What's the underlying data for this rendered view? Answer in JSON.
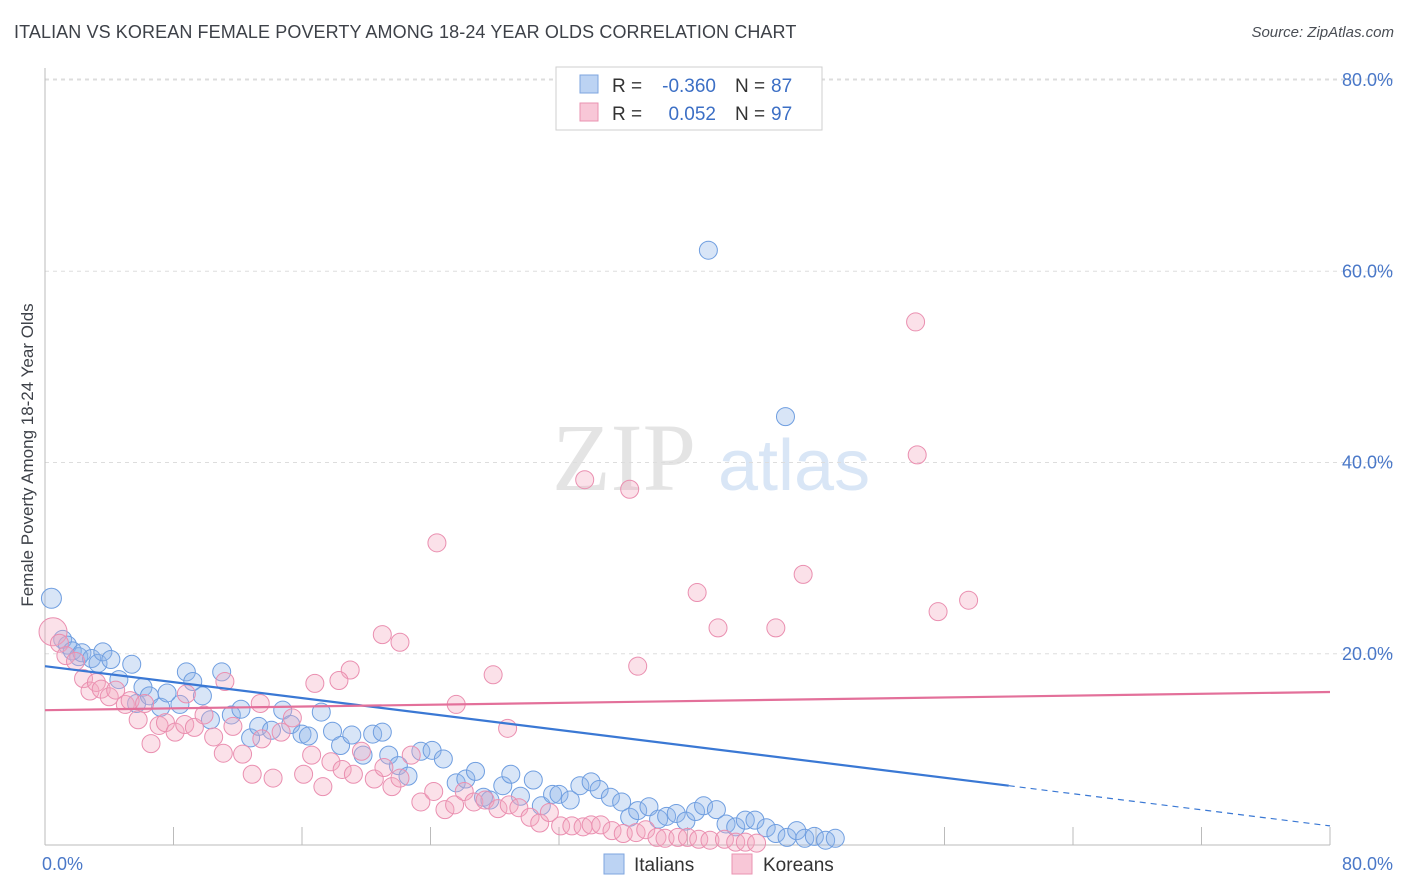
{
  "title": "ITALIAN VS KOREAN FEMALE POVERTY AMONG 18-24 YEAR OLDS CORRELATION CHART",
  "source": "Source: ZipAtlas.com",
  "watermark": {
    "zip": "ZIP",
    "atlas": "atlas"
  },
  "chart_data": {
    "type": "scatter",
    "ylabel": "Female Poverty Among 18-24 Year Olds",
    "xlim": [
      0,
      80
    ],
    "ylim": [
      0,
      80
    ],
    "x_tick_labels": [
      "0.0%",
      "80.0%"
    ],
    "y_ticks": [
      20,
      40,
      60,
      80
    ],
    "y_tick_labels": [
      "20.0%",
      "40.0%",
      "60.0%",
      "80.0%"
    ],
    "grid": true,
    "legend_position": "bottom-center",
    "stats": [
      {
        "r_label": "R =",
        "r_value": "-0.360",
        "n_label": "N =",
        "n_value": "87"
      },
      {
        "r_label": "R =",
        "r_value": "0.052",
        "n_label": "N =",
        "n_value": "97"
      }
    ],
    "series": [
      {
        "name": "Italians",
        "color": "#8fb4e8",
        "line_color": "#3a78d4",
        "trend": {
          "x0": 0,
          "y0": 18.7,
          "x1": 60,
          "y1": 6.2,
          "dash_to_x": 80,
          "dash_to_y": 2.0
        },
        "points": [
          [
            0.4,
            25.8
          ],
          [
            1.1,
            21.5
          ],
          [
            1.4,
            20.9
          ],
          [
            1.7,
            20.3
          ],
          [
            2.1,
            19.7
          ],
          [
            2.3,
            20.1
          ],
          [
            2.9,
            19.5
          ],
          [
            3.3,
            19.0
          ],
          [
            3.6,
            20.2
          ],
          [
            4.1,
            19.4
          ],
          [
            4.6,
            17.3
          ],
          [
            5.4,
            18.9
          ],
          [
            5.7,
            14.8
          ],
          [
            6.1,
            16.5
          ],
          [
            6.5,
            15.6
          ],
          [
            7.2,
            14.4
          ],
          [
            7.6,
            15.9
          ],
          [
            8.4,
            14.7
          ],
          [
            8.8,
            18.1
          ],
          [
            9.2,
            17.1
          ],
          [
            9.8,
            15.6
          ],
          [
            10.3,
            13.1
          ],
          [
            11.0,
            18.1
          ],
          [
            11.6,
            13.6
          ],
          [
            12.2,
            14.2
          ],
          [
            12.8,
            11.2
          ],
          [
            13.3,
            12.4
          ],
          [
            14.1,
            12.0
          ],
          [
            14.8,
            14.1
          ],
          [
            15.3,
            12.6
          ],
          [
            16.0,
            11.6
          ],
          [
            16.4,
            11.4
          ],
          [
            17.2,
            13.9
          ],
          [
            17.9,
            11.9
          ],
          [
            18.4,
            10.4
          ],
          [
            19.1,
            11.5
          ],
          [
            19.8,
            9.4
          ],
          [
            20.4,
            11.6
          ],
          [
            21.0,
            11.8
          ],
          [
            21.4,
            9.4
          ],
          [
            22.0,
            8.3
          ],
          [
            22.6,
            7.2
          ],
          [
            23.4,
            9.8
          ],
          [
            24.1,
            9.9
          ],
          [
            24.8,
            9.0
          ],
          [
            25.6,
            6.5
          ],
          [
            26.2,
            6.9
          ],
          [
            26.8,
            7.7
          ],
          [
            27.3,
            5.0
          ],
          [
            27.7,
            4.7
          ],
          [
            28.5,
            6.2
          ],
          [
            29.0,
            7.4
          ],
          [
            29.6,
            5.1
          ],
          [
            30.4,
            6.8
          ],
          [
            30.9,
            4.1
          ],
          [
            31.6,
            5.3
          ],
          [
            32.0,
            5.3
          ],
          [
            32.7,
            4.7
          ],
          [
            33.3,
            6.2
          ],
          [
            34.0,
            6.6
          ],
          [
            34.5,
            5.8
          ],
          [
            35.2,
            5.0
          ],
          [
            35.9,
            4.5
          ],
          [
            36.4,
            2.9
          ],
          [
            36.9,
            3.6
          ],
          [
            37.6,
            4.0
          ],
          [
            38.2,
            2.7
          ],
          [
            38.7,
            3.0
          ],
          [
            39.3,
            3.3
          ],
          [
            39.9,
            2.5
          ],
          [
            40.5,
            3.5
          ],
          [
            41.0,
            4.1
          ],
          [
            41.8,
            3.7
          ],
          [
            42.4,
            2.2
          ],
          [
            43.0,
            1.9
          ],
          [
            43.6,
            2.6
          ],
          [
            44.2,
            2.6
          ],
          [
            44.9,
            1.8
          ],
          [
            45.5,
            1.2
          ],
          [
            46.2,
            0.8
          ],
          [
            46.8,
            1.5
          ],
          [
            47.3,
            0.7
          ],
          [
            47.9,
            0.9
          ],
          [
            48.6,
            0.5
          ],
          [
            49.2,
            0.7
          ],
          [
            41.3,
            62.2
          ],
          [
            46.1,
            44.8
          ]
        ]
      },
      {
        "name": "Koreans",
        "color": "#f4a9c1",
        "line_color": "#e3709a",
        "trend": {
          "x0": 0,
          "y0": 14.1,
          "x1": 80,
          "y1": 16.0
        },
        "points": [
          [
            0.5,
            22.3
          ],
          [
            0.9,
            21.1
          ],
          [
            1.3,
            19.8
          ],
          [
            1.9,
            19.2
          ],
          [
            2.4,
            17.4
          ],
          [
            2.8,
            16.1
          ],
          [
            3.2,
            17.0
          ],
          [
            3.5,
            16.3
          ],
          [
            4.0,
            15.5
          ],
          [
            4.4,
            16.2
          ],
          [
            5.0,
            14.7
          ],
          [
            5.3,
            15.1
          ],
          [
            5.8,
            13.1
          ],
          [
            6.2,
            14.8
          ],
          [
            6.6,
            10.6
          ],
          [
            7.1,
            12.5
          ],
          [
            7.5,
            12.8
          ],
          [
            8.1,
            11.8
          ],
          [
            8.7,
            12.6
          ],
          [
            9.3,
            12.3
          ],
          [
            9.9,
            13.6
          ],
          [
            10.5,
            11.3
          ],
          [
            11.1,
            9.6
          ],
          [
            11.7,
            12.4
          ],
          [
            12.3,
            9.5
          ],
          [
            12.9,
            7.4
          ],
          [
            13.5,
            11.1
          ],
          [
            14.2,
            7.0
          ],
          [
            14.7,
            11.8
          ],
          [
            15.4,
            13.3
          ],
          [
            16.1,
            7.4
          ],
          [
            16.6,
            9.4
          ],
          [
            17.3,
            6.1
          ],
          [
            17.8,
            8.7
          ],
          [
            18.5,
            7.9
          ],
          [
            19.2,
            7.4
          ],
          [
            19.7,
            9.8
          ],
          [
            20.5,
            6.9
          ],
          [
            21.1,
            8.1
          ],
          [
            21.6,
            6.1
          ],
          [
            22.1,
            7.0
          ],
          [
            22.8,
            9.4
          ],
          [
            23.4,
            4.5
          ],
          [
            24.2,
            5.6
          ],
          [
            24.9,
            3.7
          ],
          [
            25.5,
            4.2
          ],
          [
            26.1,
            5.6
          ],
          [
            26.7,
            4.5
          ],
          [
            27.4,
            4.7
          ],
          [
            28.2,
            3.8
          ],
          [
            28.9,
            4.2
          ],
          [
            29.5,
            3.9
          ],
          [
            30.2,
            2.9
          ],
          [
            30.8,
            2.3
          ],
          [
            31.4,
            3.4
          ],
          [
            32.1,
            2.0
          ],
          [
            32.8,
            2.0
          ],
          [
            33.5,
            1.9
          ],
          [
            34.0,
            2.1
          ],
          [
            34.6,
            2.1
          ],
          [
            35.3,
            1.5
          ],
          [
            36.0,
            1.2
          ],
          [
            36.8,
            1.3
          ],
          [
            37.4,
            1.6
          ],
          [
            38.1,
            0.8
          ],
          [
            38.6,
            0.7
          ],
          [
            39.4,
            0.8
          ],
          [
            40.0,
            0.8
          ],
          [
            40.7,
            0.6
          ],
          [
            41.4,
            0.5
          ],
          [
            42.3,
            0.6
          ],
          [
            43.0,
            0.3
          ],
          [
            43.6,
            0.3
          ],
          [
            44.3,
            0.2
          ],
          [
            24.4,
            31.6
          ],
          [
            33.6,
            38.2
          ],
          [
            36.4,
            37.2
          ],
          [
            40.6,
            26.4
          ],
          [
            41.9,
            22.7
          ],
          [
            45.5,
            22.7
          ],
          [
            47.2,
            28.3
          ],
          [
            54.2,
            54.7
          ],
          [
            54.3,
            40.8
          ],
          [
            55.6,
            24.4
          ],
          [
            57.5,
            25.6
          ],
          [
            36.9,
            18.7
          ],
          [
            27.9,
            17.8
          ],
          [
            21.0,
            22.0
          ],
          [
            22.1,
            21.2
          ],
          [
            19.0,
            18.3
          ],
          [
            8.8,
            15.8
          ],
          [
            11.2,
            17.1
          ],
          [
            13.4,
            14.8
          ],
          [
            16.8,
            16.9
          ],
          [
            18.3,
            17.2
          ],
          [
            25.6,
            14.7
          ],
          [
            28.8,
            12.2
          ]
        ]
      }
    ]
  }
}
